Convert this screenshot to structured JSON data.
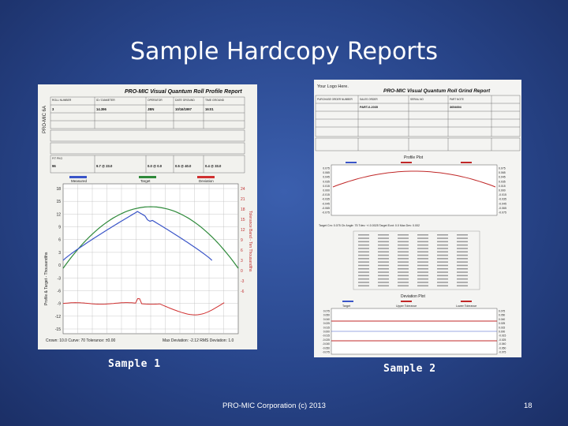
{
  "slide": {
    "title": "Sample Hardcopy Reports",
    "footer": "PRO-MIC Corporation (c) 2013",
    "page_number": "18"
  },
  "sample1": {
    "caption": "Sample 1",
    "report_title": "PRO-MIC Visual Quantum Roll Profile Report",
    "side_label": "PRO-MIC 6A",
    "fields": [
      {
        "label": "ROLL NUMBER",
        "value": "3"
      },
      {
        "label": "ID / DIAMETER",
        "value": "14.396"
      },
      {
        "label": "OPERATOR",
        "value": "JBN"
      },
      {
        "label": "DATE GROUND",
        "value": "10/16/1997"
      },
      {
        "label": "TIME GROUND",
        "value": "16:01"
      }
    ],
    "results": [
      {
        "label": "FIT PKG",
        "value": "96"
      },
      {
        "label": "",
        "value": "9.7 @ 23.0"
      },
      {
        "label": "",
        "value": "0.0 @ 0.0"
      },
      {
        "label": "",
        "value": "0.5 @ 40.0"
      },
      {
        "label": "",
        "value": "0.4 @ 33.0"
      }
    ],
    "legend": [
      "Measured",
      "Target",
      "Deviation"
    ],
    "y_left_label": "Profile & Target - Thousandths",
    "y_right_label": "Tolerance Band - Ten Thousandths",
    "y_left_ticks": [
      "18",
      "15",
      "12",
      "9",
      "6",
      "3",
      "0",
      "-3",
      "-6",
      "-9",
      "-12",
      "-15"
    ],
    "y_right_ticks": [
      "24",
      "21",
      "18",
      "15",
      "12",
      "9",
      "6",
      "3",
      "0",
      "-3",
      "-6"
    ],
    "footer_line": "Crown: 10.0  Curve: 70  Tolerance: ±0.00",
    "footer_right": "Max Deviation: -2.12   RMS Deviation: 1.0"
  },
  "sample2": {
    "caption": "Sample 2",
    "logo_text": "Your Logo Here.",
    "report_title": "PRO-MIC Visual Quantum Roll Grind Report",
    "fields": [
      {
        "label": "PURCHASE ORDER NUMBER",
        "value": ""
      },
      {
        "label": "SALES ORDER",
        "value": "PART-0-2035"
      },
      {
        "label": "SERIAL NO",
        "value": ""
      },
      {
        "label": "PART NOTE",
        "value": "3654694"
      }
    ],
    "profile_title": "Profile Plot",
    "deviation_title": "Deviation Plot",
    "profile_ticks": [
      "0.075",
      "0.065",
      "0.045",
      "0.035",
      "0.015",
      "0.000",
      "-0.015",
      "-0.035",
      "-0.045",
      "-0.065",
      "-0.075"
    ],
    "deviation_ticks": [
      "0.075",
      "0.050",
      "0.040",
      "0.025",
      "0.015",
      "0.000",
      "-0.015",
      "-0.025",
      "-0.040",
      "-0.050",
      "-0.075"
    ],
    "target_line": "Target Crn: 0.075  Ctr Angle: 75  Tdev: +/-0.0025  Target Ecnt: 0.0  Max Dev: 0.002",
    "legend": [
      "Target",
      "Upper Tolerance",
      "Lower Tolerance"
    ]
  },
  "colors": {
    "measured": "#3a55c8",
    "target": "#2e8a3a",
    "deviation": "#d03030",
    "tolerance": "#c02828"
  }
}
